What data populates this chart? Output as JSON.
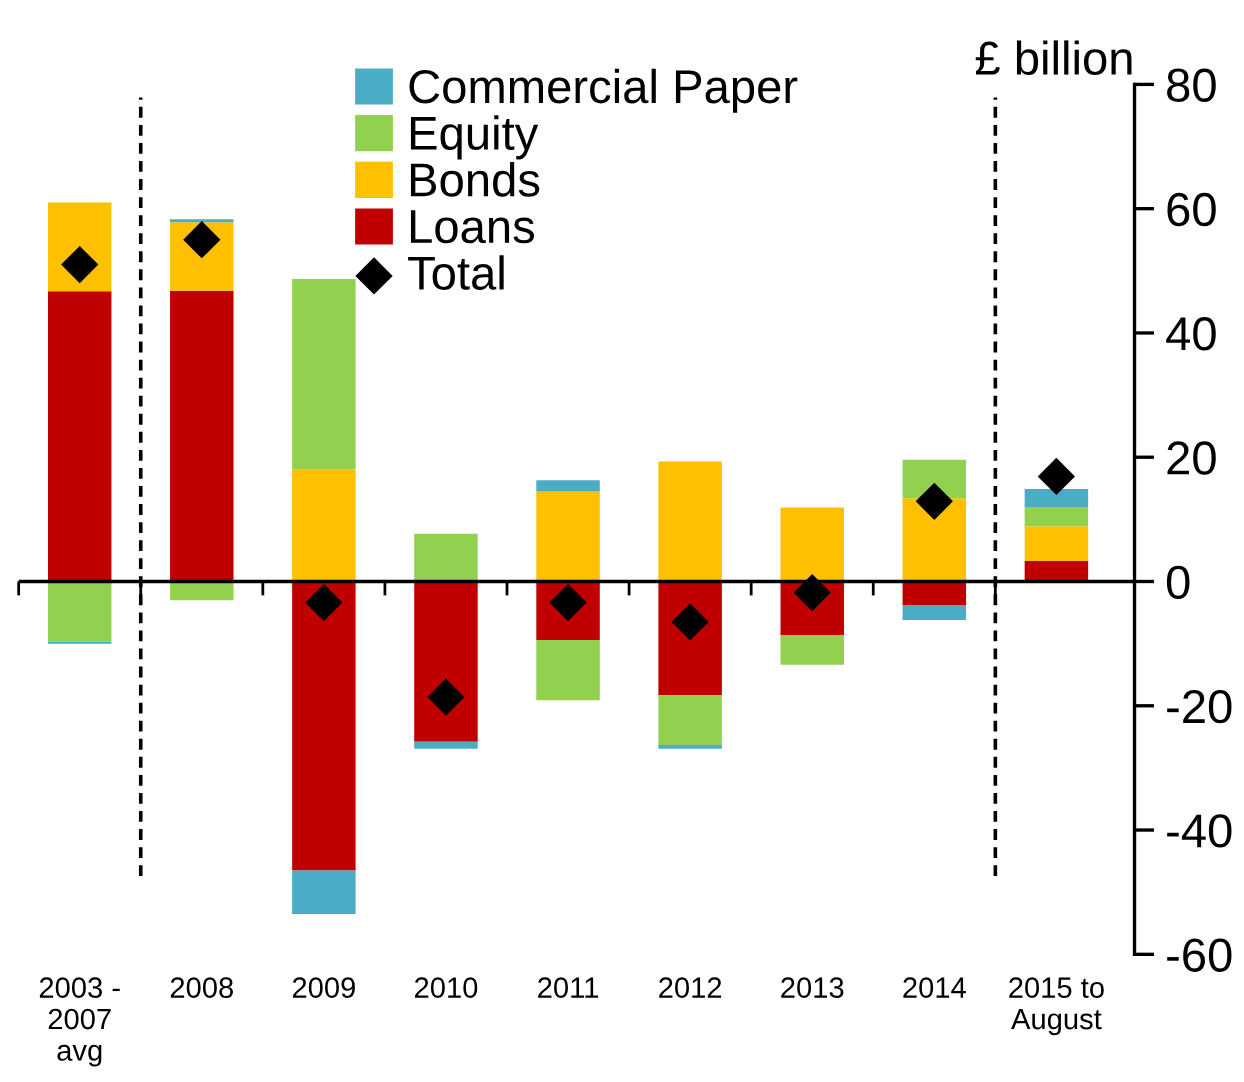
{
  "chart_data": {
    "type": "bar",
    "stacked": true,
    "ylabel": "£ billion",
    "categories": [
      "2003 -\n2007\navg",
      "2008",
      "2009",
      "2010",
      "2011",
      "2012",
      "2013",
      "2014",
      "2015 to\nAugust"
    ],
    "series": [
      {
        "name": "Loans",
        "color": "#c00000",
        "values": [
          46.7,
          46.8,
          -46.5,
          -25.8,
          -9.4,
          -18.3,
          -8.6,
          -3.8,
          3.3
        ]
      },
      {
        "name": "Bonds",
        "color": "#ffc000",
        "values": [
          14.3,
          11,
          18,
          0,
          14.5,
          19.3,
          11.9,
          13.4,
          5.6
        ]
      },
      {
        "name": "Equity",
        "color": "#92d050",
        "values": [
          -9.7,
          -3,
          30.7,
          7.7,
          -9.7,
          -8,
          -4.8,
          6.2,
          3.1
        ]
      },
      {
        "name": "Commercial Paper",
        "color": "#4bacc6",
        "values": [
          -0.3,
          0.5,
          -7,
          -1.1,
          1.8,
          -0.6,
          0,
          -2.4,
          2.9
        ]
      },
      {
        "name": "Total",
        "type": "scatter",
        "color": "#000000",
        "marker": "diamond",
        "values": [
          51,
          55,
          -3.4,
          -18.6,
          -3.4,
          -6.5,
          -1.8,
          12.9,
          16.9
        ]
      }
    ],
    "ylim": [
      -60,
      80
    ],
    "yticks": [
      -60,
      -40,
      -20,
      0,
      20,
      40,
      60,
      80
    ],
    "grid": false,
    "legend": "top"
  }
}
